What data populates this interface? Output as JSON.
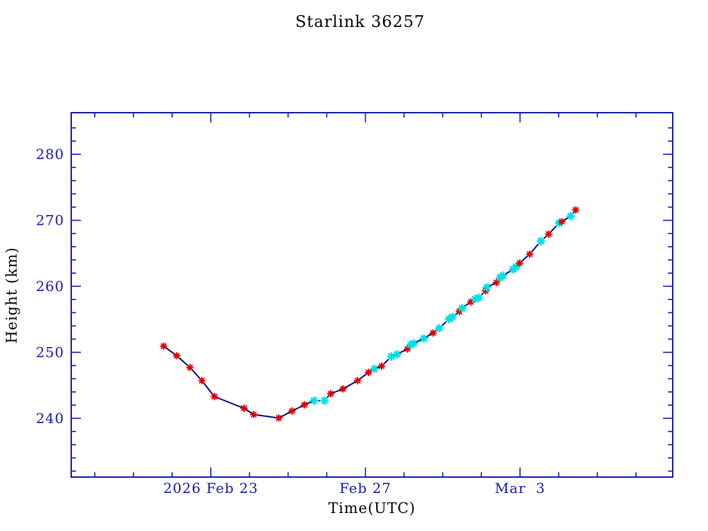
{
  "window": {
    "background_color": "#ffffff"
  },
  "colors": {
    "axis_and_text": "#1414aa",
    "data_line": "#000080",
    "marker_red": "#e00000",
    "marker_cyan": "#00e0e6",
    "background": "#ffffff"
  },
  "chart_data": {
    "type": "line",
    "title": "Starlink 36257",
    "xlabel": "Time(UTC)",
    "ylabel": "Height (km)",
    "grid": false,
    "legend": null,
    "x_unit": "days relative to 2026 Feb 23 00:00 UTC",
    "x_range": [
      -3.61,
      11.95
    ],
    "y_range": [
      231.1,
      286.3
    ],
    "x_major_ticks": [
      {
        "t": 0,
        "label": "2026 Feb 23"
      },
      {
        "t": 4,
        "label": "Feb 27"
      },
      {
        "t": 8,
        "label": "Mar  3"
      }
    ],
    "x_minor_tick_step": 1,
    "y_major_ticks": [
      240,
      250,
      260,
      270,
      280
    ],
    "y_minor_tick_step": 2,
    "marker_legend": {
      "r": "red asterisk observation",
      "c": "cyan asterisk observation"
    },
    "series": [
      {
        "name": "Height",
        "line_color": "#000080",
        "points": [
          [
            -1.22,
            250.94,
            "r"
          ],
          [
            -0.88,
            249.48,
            "r"
          ],
          [
            -0.54,
            247.7,
            "r"
          ],
          [
            -0.23,
            245.71,
            "r"
          ],
          [
            0.09,
            243.3,
            "r"
          ],
          [
            0.86,
            241.52,
            "r"
          ],
          [
            1.11,
            240.58,
            "r"
          ],
          [
            1.76,
            240.05,
            "r"
          ],
          [
            2.1,
            241.1,
            "r"
          ],
          [
            2.42,
            242.04,
            "r"
          ],
          [
            2.67,
            242.67,
            "c"
          ],
          [
            2.94,
            242.67,
            "c"
          ],
          [
            3.1,
            243.72,
            "r"
          ],
          [
            3.42,
            244.45,
            "r"
          ],
          [
            3.8,
            245.71,
            "r"
          ],
          [
            4.08,
            246.96,
            "r"
          ],
          [
            4.23,
            247.49,
            "c"
          ],
          [
            4.42,
            247.91,
            "r"
          ],
          [
            4.67,
            249.37,
            "c"
          ],
          [
            4.82,
            249.69,
            "c"
          ],
          [
            5.09,
            250.52,
            "r"
          ],
          [
            5.17,
            251.15,
            "c"
          ],
          [
            5.25,
            251.36,
            "c"
          ],
          [
            5.51,
            252.09,
            "c"
          ],
          [
            5.75,
            252.93,
            "r"
          ],
          [
            5.91,
            253.66,
            "c"
          ],
          [
            6.16,
            255.03,
            "c"
          ],
          [
            6.25,
            255.34,
            "c"
          ],
          [
            6.43,
            256.18,
            "r"
          ],
          [
            6.5,
            256.7,
            "c"
          ],
          [
            6.73,
            257.64,
            "r"
          ],
          [
            6.84,
            258.06,
            "c"
          ],
          [
            6.93,
            258.27,
            "c"
          ],
          [
            7.11,
            259.32,
            "r"
          ],
          [
            7.14,
            259.84,
            "c"
          ],
          [
            7.39,
            260.58,
            "r"
          ],
          [
            7.48,
            261.31,
            "c"
          ],
          [
            7.56,
            261.62,
            "c"
          ],
          [
            7.82,
            262.57,
            "c"
          ],
          [
            7.9,
            262.98,
            "c"
          ],
          [
            7.99,
            263.51,
            "r"
          ],
          [
            8.25,
            264.87,
            "r"
          ],
          [
            8.54,
            266.86,
            "c"
          ],
          [
            8.74,
            267.91,
            "r"
          ],
          [
            9.01,
            269.58,
            "c"
          ],
          [
            9.08,
            269.79,
            "r"
          ],
          [
            9.31,
            270.63,
            "c"
          ],
          [
            9.44,
            271.57,
            "r"
          ]
        ]
      }
    ]
  }
}
